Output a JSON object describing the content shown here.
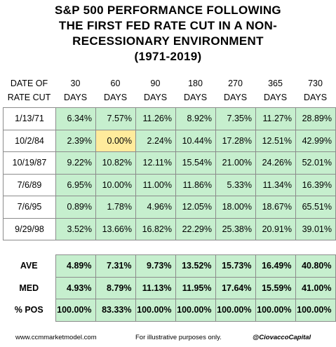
{
  "title_lines": [
    "S&P 500 PERFORMANCE FOLLOWING",
    "THE FIRST FED RATE CUT IN A NON-",
    "RECESSIONARY ENVIRONMENT",
    "(1971-2019)"
  ],
  "colors": {
    "positive_fill": "#c6efce",
    "neutral_fill": "#ffeb9c",
    "border": "#8c8c8c"
  },
  "chart_data": {
    "type": "table",
    "header_row1": [
      "DATE OF",
      "30",
      "60",
      "90",
      "180",
      "270",
      "365",
      "730"
    ],
    "header_row2": [
      "RATE CUT",
      "DAYS",
      "DAYS",
      "DAYS",
      "DAYS",
      "DAYS",
      "DAYS",
      "DAYS"
    ],
    "rows": [
      {
        "date": "1/13/71",
        "values": [
          "6.34%",
          "7.57%",
          "11.26%",
          "8.92%",
          "7.35%",
          "11.27%",
          "28.89%"
        ]
      },
      {
        "date": "10/2/84",
        "values": [
          "2.39%",
          "0.00%",
          "2.24%",
          "10.44%",
          "17.28%",
          "12.51%",
          "42.99%"
        ]
      },
      {
        "date": "10/19/87",
        "values": [
          "9.22%",
          "10.82%",
          "12.11%",
          "15.54%",
          "21.00%",
          "24.26%",
          "52.01%"
        ]
      },
      {
        "date": "7/6/89",
        "values": [
          "6.95%",
          "10.00%",
          "11.00%",
          "11.86%",
          "5.33%",
          "11.34%",
          "16.39%"
        ]
      },
      {
        "date": "7/6/95",
        "values": [
          "0.89%",
          "1.78%",
          "4.96%",
          "12.05%",
          "18.00%",
          "18.67%",
          "65.51%"
        ]
      },
      {
        "date": "9/29/98",
        "values": [
          "3.52%",
          "13.66%",
          "16.82%",
          "22.29%",
          "25.38%",
          "20.91%",
          "39.01%"
        ]
      }
    ],
    "summary": [
      {
        "label": "AVE",
        "values": [
          "4.89%",
          "7.31%",
          "9.73%",
          "13.52%",
          "15.73%",
          "16.49%",
          "40.80%"
        ]
      },
      {
        "label": "MED",
        "values": [
          "4.93%",
          "8.79%",
          "11.13%",
          "11.95%",
          "17.64%",
          "15.59%",
          "41.00%"
        ]
      },
      {
        "label": "% POS",
        "values": [
          "100.00%",
          "83.33%",
          "100.00%",
          "100.00%",
          "100.00%",
          "100.00%",
          "100.00%"
        ]
      }
    ]
  },
  "footer": {
    "url": "www.ccmmarketmodel.com",
    "note": "For illustrative purposes only.",
    "handle": "@CiovaccoCapital"
  }
}
